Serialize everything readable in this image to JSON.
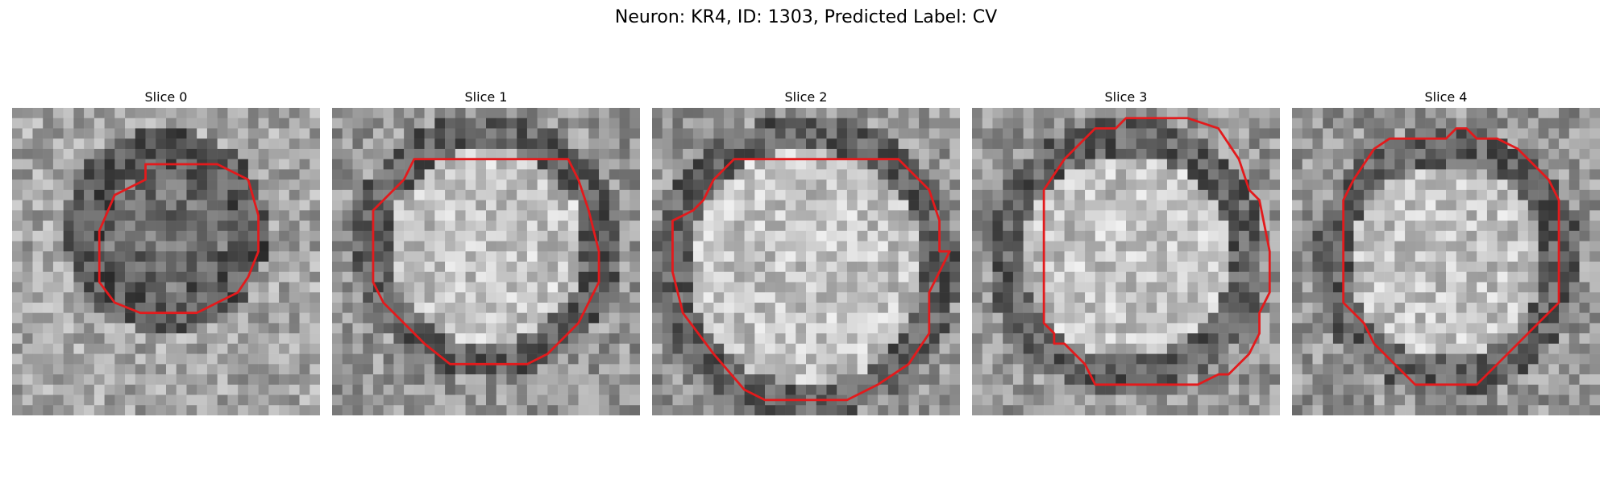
{
  "figure": {
    "title": "Neuron: KR4, ID: 1303, Predicted Label: CV",
    "outline_color": "#e31a1c"
  },
  "panels": [
    {
      "label": "Slice 0"
    },
    {
      "label": "Slice 1"
    },
    {
      "label": "Slice 2"
    },
    {
      "label": "Slice 3"
    },
    {
      "label": "Slice 4"
    }
  ]
}
